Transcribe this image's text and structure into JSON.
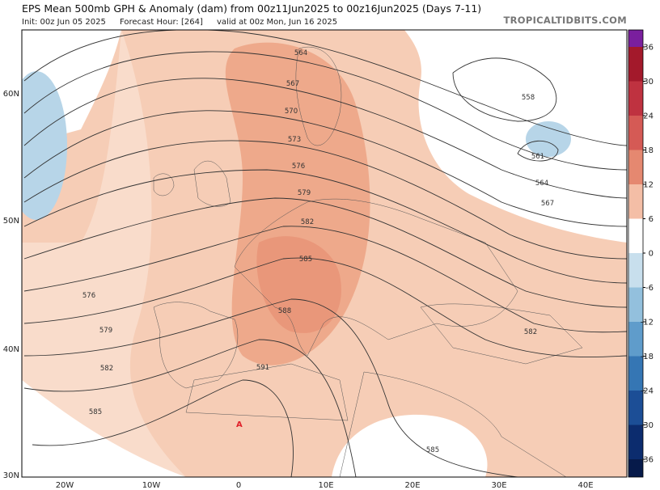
{
  "header": {
    "title": "EPS Mean 500mb GPH & Anomaly (dam) from 00z11Jun2025 to 00z16Jun2025 (Days 7-11)",
    "init": "Init: 00z Jun 05 2025",
    "forecast_hour": "Forecast Hour: [264]",
    "valid": "valid at 00z Mon, Jun 16 2025",
    "source": "TROPICALTIDBITS.COM"
  },
  "latitude_labels": [
    "60N",
    "50N",
    "40N",
    "30N"
  ],
  "longitude_labels": [
    "20W",
    "10W",
    "0",
    "10E",
    "20E",
    "30E",
    "40E"
  ],
  "colorbar_ticks": [
    "36",
    "30",
    "24",
    "18",
    "12",
    "6",
    "0",
    "-6",
    "-12",
    "-18",
    "-24",
    "-30",
    "-36"
  ],
  "contour_labels": [
    "564",
    "567",
    "570",
    "573",
    "576",
    "579",
    "582",
    "585",
    "588",
    "591",
    "576",
    "579",
    "582",
    "585",
    "558",
    "561",
    "564",
    "567",
    "582",
    "585"
  ],
  "annotation": "A"
}
